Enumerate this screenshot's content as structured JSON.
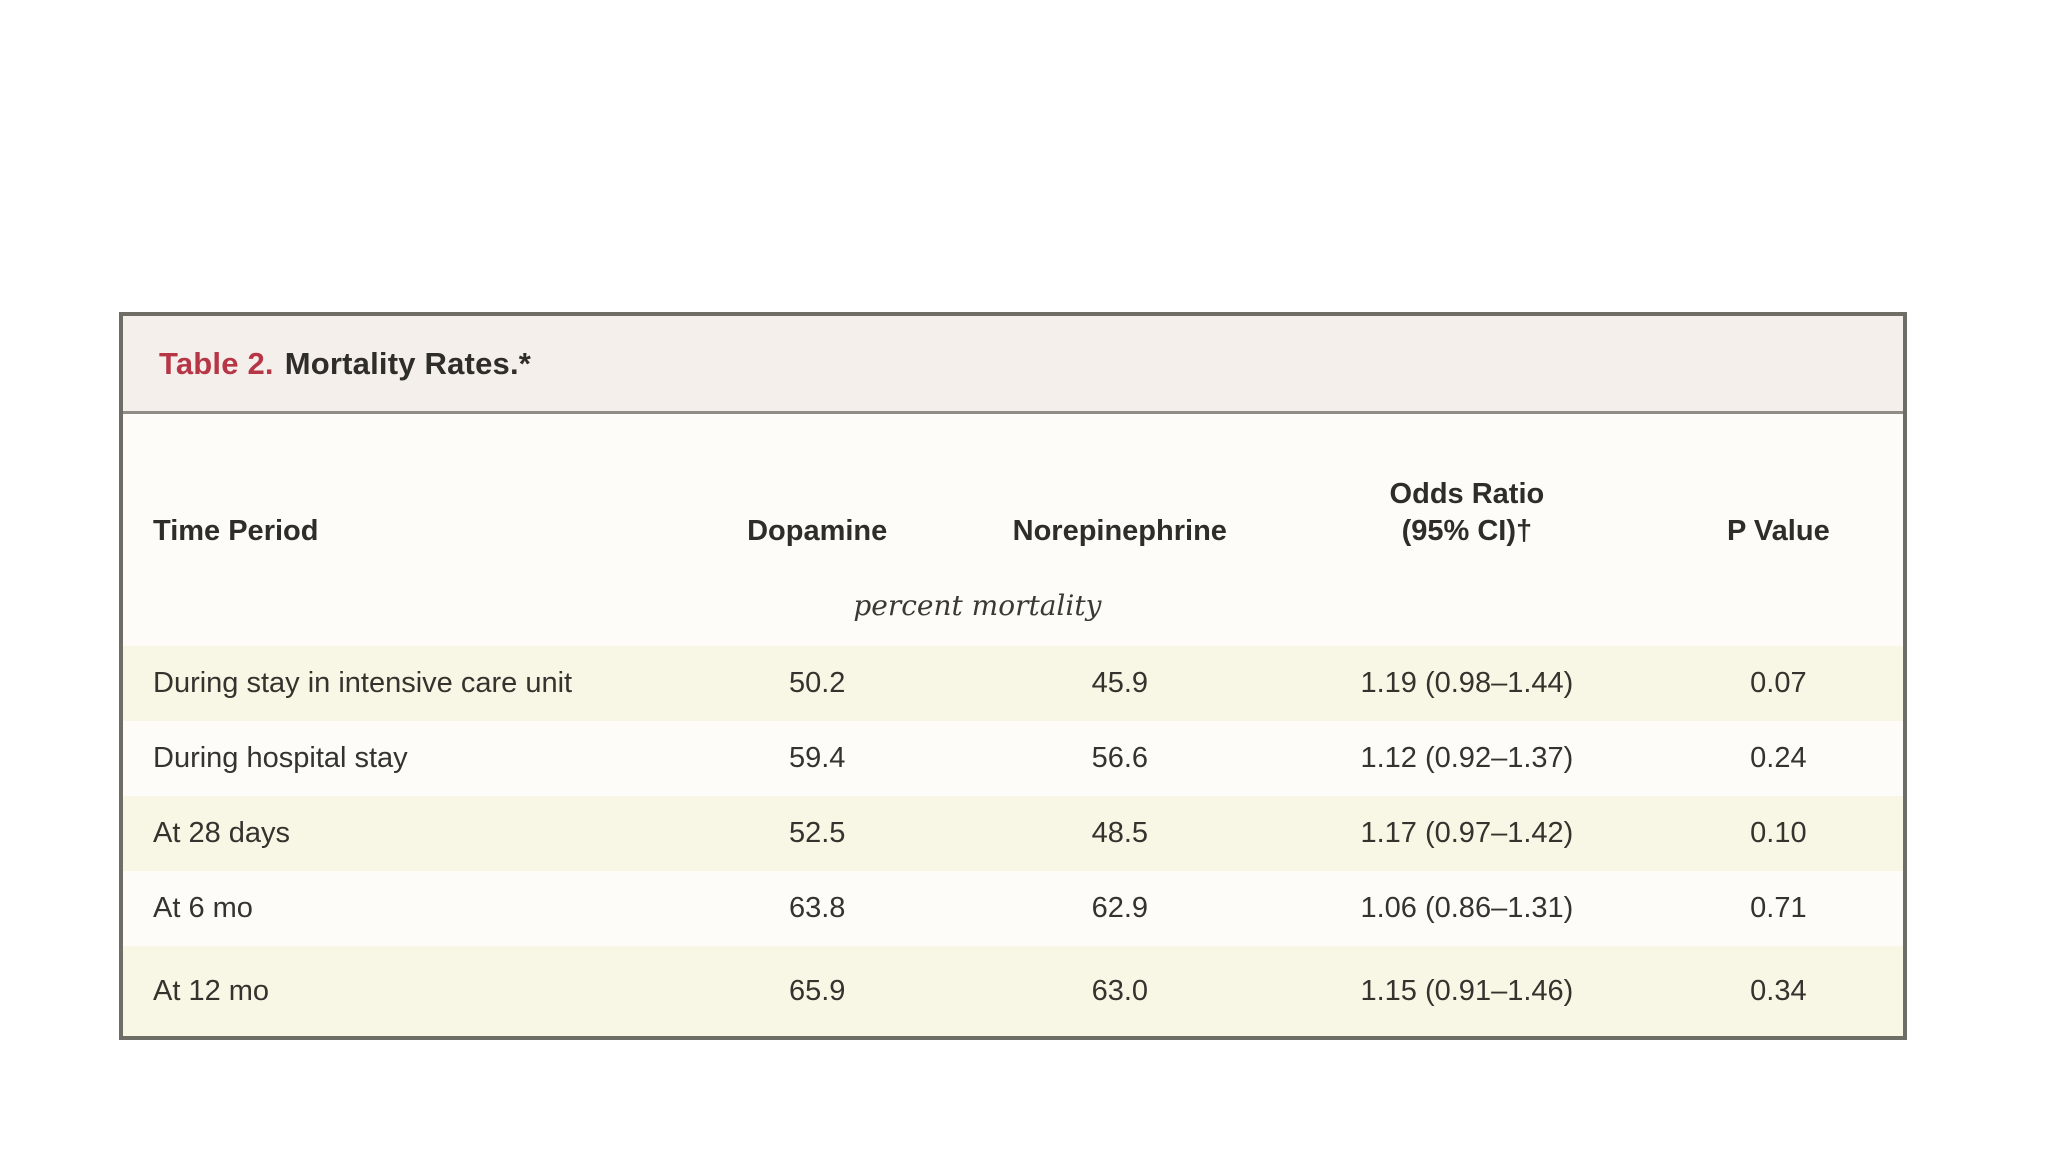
{
  "table": {
    "label": "Table 2.",
    "title": "Mortality Rates.*",
    "columns": [
      {
        "label": "Time Period"
      },
      {
        "label": "Dopamine"
      },
      {
        "label": "Norepinephrine"
      },
      {
        "label": "Odds Ratio",
        "label2": "(95% CI)†"
      },
      {
        "label": "P Value"
      }
    ],
    "units_subheader": "percent mortality",
    "rows": [
      {
        "cells": [
          "During stay in intensive care unit",
          "50.2",
          "45.9",
          "1.19 (0.98–1.44)",
          "0.07"
        ]
      },
      {
        "cells": [
          "During hospital stay",
          "59.4",
          "56.6",
          "1.12 (0.92–1.37)",
          "0.24"
        ]
      },
      {
        "cells": [
          "At 28 days",
          "52.5",
          "48.5",
          "1.17 (0.97–1.42)",
          "0.10"
        ]
      },
      {
        "cells": [
          "At 6 mo",
          "63.8",
          "62.9",
          "1.06 (0.86–1.31)",
          "0.71"
        ]
      },
      {
        "cells": [
          "At 12 mo",
          "65.9",
          "63.0",
          "1.15 (0.91–1.46)",
          "0.34"
        ]
      }
    ]
  },
  "colors": {
    "accent_red": "#b63646",
    "title_bar_bg": "#f5efeb",
    "body_bg": "#fdfcf8",
    "stripe_cream": "#f8f6e4",
    "border_gray": "#6e6e66",
    "text": "#2e2d29"
  },
  "chart_data": {
    "type": "table",
    "title": "Table 2. Mortality Rates.*",
    "columns": [
      "Time Period",
      "Dopamine",
      "Norepinephrine",
      "Odds Ratio (95% CI)†",
      "P Value"
    ],
    "units": "percent mortality",
    "rows": [
      [
        "During stay in intensive care unit",
        50.2,
        45.9,
        "1.19 (0.98–1.44)",
        0.07
      ],
      [
        "During hospital stay",
        59.4,
        56.6,
        "1.12 (0.92–1.37)",
        0.24
      ],
      [
        "At 28 days",
        52.5,
        48.5,
        "1.17 (0.97–1.42)",
        0.1
      ],
      [
        "At 6 mo",
        63.8,
        62.9,
        "1.06 (0.86–1.31)",
        0.71
      ],
      [
        "At 12 mo",
        65.9,
        63.0,
        "1.15 (0.91–1.46)",
        0.34
      ]
    ]
  }
}
